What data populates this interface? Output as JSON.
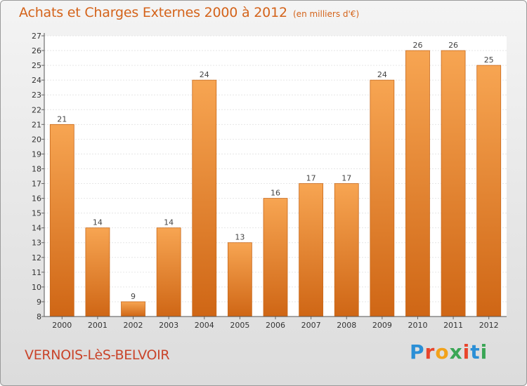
{
  "header": {
    "title": "Achats et Charges Externes 2000 à 2012",
    "subtitle": "(en milliers d'€)"
  },
  "footer": {
    "commune": "VERNOIS-LèS-BELVOIR",
    "logo": "Proxiti"
  },
  "colors": {
    "bar_top": "#f7a552",
    "bar_bottom": "#cf6615",
    "bar_stroke": "#c8691c",
    "title": "#d4631a",
    "commune": "#c9442a"
  },
  "chart_data": {
    "type": "bar",
    "title": "Achats et Charges Externes 2000 à 2012",
    "subtitle": "(en milliers d'€)",
    "xlabel": "",
    "ylabel": "",
    "categories": [
      "2000",
      "2001",
      "2002",
      "2003",
      "2004",
      "2005",
      "2006",
      "2007",
      "2008",
      "2009",
      "2010",
      "2011",
      "2012"
    ],
    "values": [
      21,
      14,
      9,
      14,
      24,
      13,
      16,
      17,
      17,
      24,
      26,
      26,
      25
    ],
    "ylim": [
      8,
      27
    ],
    "yticks": [
      "8",
      "9",
      "10",
      "11",
      "12",
      "13",
      "14",
      "15",
      "16",
      "17",
      "18",
      "19",
      "20",
      "21",
      "22",
      "23",
      "24",
      "25",
      "26",
      "27"
    ],
    "grid": true
  }
}
